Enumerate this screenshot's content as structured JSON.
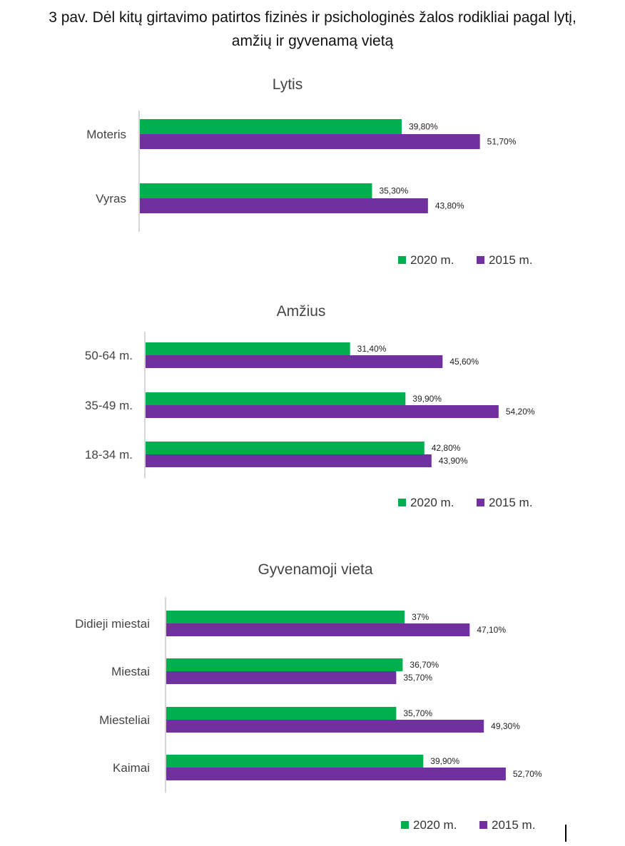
{
  "figure": {
    "title_line1": "3 pav. Dėl kitų girtavimo patirtos fizinės ir psichologinės žalos rodikliai pagal lytį,",
    "title_line2": "amžių ir gyvenamą vietą"
  },
  "colors": {
    "s2020": "#00b050",
    "s2015": "#7030a0",
    "axis": "#bfbfbf"
  },
  "chart_data": [
    {
      "type": "bar",
      "orientation": "horizontal",
      "title": "Lytis",
      "categories": [
        "Moteris",
        "Vyras"
      ],
      "series": [
        {
          "name": "2020 m.",
          "values": [
            39.8,
            35.3
          ],
          "labels": [
            "39,80%",
            "35,30%"
          ]
        },
        {
          "name": "2015 m.",
          "values": [
            51.7,
            43.8
          ],
          "labels": [
            "51,70%",
            "43,80%"
          ]
        }
      ],
      "legend": "bottom-right",
      "grid": false
    },
    {
      "type": "bar",
      "orientation": "horizontal",
      "title": "Amžius",
      "categories": [
        "50-64 m.",
        "35-49 m.",
        "18-34 m."
      ],
      "series": [
        {
          "name": "2020 m.",
          "values": [
            31.4,
            39.9,
            42.8
          ],
          "labels": [
            "31,40%",
            "39,90%",
            "42,80%"
          ]
        },
        {
          "name": "2015 m.",
          "values": [
            45.6,
            54.2,
            43.9
          ],
          "labels": [
            "45,60%",
            "54,20%",
            "43,90%"
          ]
        }
      ],
      "legend": "bottom-right",
      "grid": false
    },
    {
      "type": "bar",
      "orientation": "horizontal",
      "title": "Gyvenamoji vieta",
      "categories": [
        "Didieji miestai",
        "Miestai",
        "Miesteliai",
        "Kaimai"
      ],
      "series": [
        {
          "name": "2020 m.",
          "values": [
            37.0,
            36.7,
            35.7,
            39.9
          ],
          "labels": [
            "37%",
            "36,70%",
            "35,70%",
            "39,90%"
          ]
        },
        {
          "name": "2015 m.",
          "values": [
            47.1,
            35.7,
            49.3,
            52.7
          ],
          "labels": [
            "47,10%",
            "35,70%",
            "49,30%",
            "52,70%"
          ]
        }
      ],
      "legend": "bottom-right",
      "grid": false
    }
  ]
}
